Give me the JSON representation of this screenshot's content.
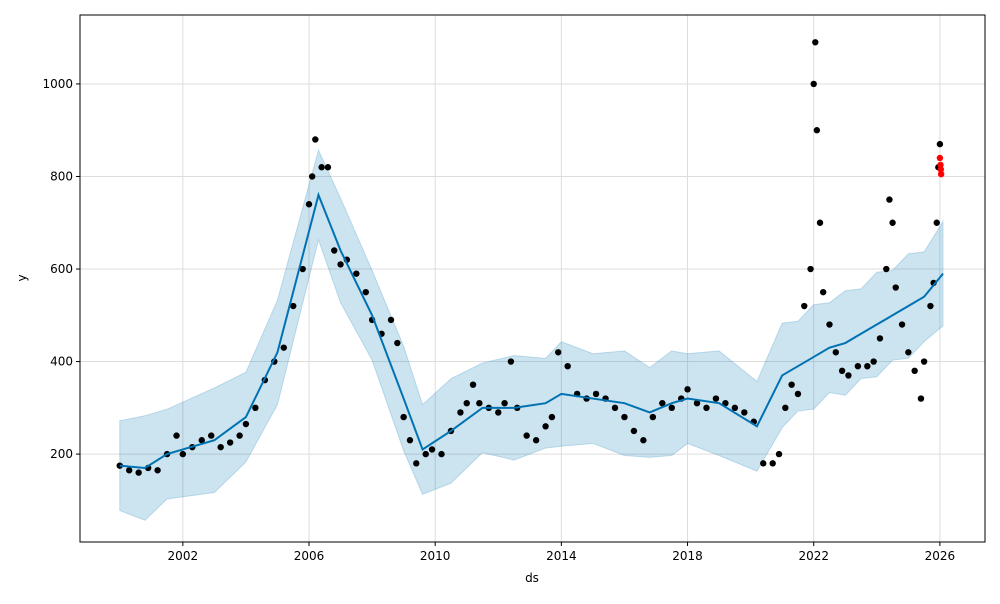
{
  "chart_data": {
    "type": "scatter",
    "title": "",
    "xlabel": "ds",
    "ylabel": "y",
    "xlim": [
      1998.74,
      2027.43
    ],
    "ylim": [
      10,
      1149
    ],
    "xticks": [
      2002,
      2006,
      2010,
      2014,
      2018,
      2022,
      2026
    ],
    "yticks": [
      200,
      400,
      600,
      800,
      1000
    ],
    "grid": true,
    "colors": {
      "observed": "#000000",
      "future_observed": "#ff0000",
      "forecast": "#0072B2",
      "interval": "#0072B2"
    },
    "observed": [
      [
        2000.0,
        175
      ],
      [
        2000.3,
        165
      ],
      [
        2000.6,
        160
      ],
      [
        2000.9,
        170
      ],
      [
        2001.2,
        165
      ],
      [
        2001.5,
        200
      ],
      [
        2001.8,
        240
      ],
      [
        2002.0,
        200
      ],
      [
        2002.3,
        215
      ],
      [
        2002.6,
        230
      ],
      [
        2002.9,
        240
      ],
      [
        2003.2,
        215
      ],
      [
        2003.5,
        225
      ],
      [
        2003.8,
        240
      ],
      [
        2004.0,
        265
      ],
      [
        2004.3,
        300
      ],
      [
        2004.6,
        360
      ],
      [
        2004.9,
        400
      ],
      [
        2005.2,
        430
      ],
      [
        2005.5,
        520
      ],
      [
        2005.8,
        600
      ],
      [
        2006.0,
        740
      ],
      [
        2006.1,
        800
      ],
      [
        2006.2,
        880
      ],
      [
        2006.4,
        820
      ],
      [
        2006.6,
        820
      ],
      [
        2006.8,
        640
      ],
      [
        2007.0,
        610
      ],
      [
        2007.2,
        620
      ],
      [
        2007.5,
        590
      ],
      [
        2007.8,
        550
      ],
      [
        2008.0,
        490
      ],
      [
        2008.3,
        460
      ],
      [
        2008.6,
        490
      ],
      [
        2008.8,
        440
      ],
      [
        2009.0,
        280
      ],
      [
        2009.2,
        230
      ],
      [
        2009.4,
        180
      ],
      [
        2009.7,
        200
      ],
      [
        2009.9,
        210
      ],
      [
        2010.2,
        200
      ],
      [
        2010.5,
        250
      ],
      [
        2010.8,
        290
      ],
      [
        2011.0,
        310
      ],
      [
        2011.2,
        350
      ],
      [
        2011.4,
        310
      ],
      [
        2011.7,
        300
      ],
      [
        2012.0,
        290
      ],
      [
        2012.2,
        310
      ],
      [
        2012.4,
        400
      ],
      [
        2012.6,
        300
      ],
      [
        2012.9,
        240
      ],
      [
        2013.2,
        230
      ],
      [
        2013.5,
        260
      ],
      [
        2013.7,
        280
      ],
      [
        2013.9,
        420
      ],
      [
        2014.2,
        390
      ],
      [
        2014.5,
        330
      ],
      [
        2014.8,
        320
      ],
      [
        2015.1,
        330
      ],
      [
        2015.4,
        320
      ],
      [
        2015.7,
        300
      ],
      [
        2016.0,
        280
      ],
      [
        2016.3,
        250
      ],
      [
        2016.6,
        230
      ],
      [
        2016.9,
        280
      ],
      [
        2017.2,
        310
      ],
      [
        2017.5,
        300
      ],
      [
        2017.8,
        320
      ],
      [
        2018.0,
        340
      ],
      [
        2018.3,
        310
      ],
      [
        2018.6,
        300
      ],
      [
        2018.9,
        320
      ],
      [
        2019.2,
        310
      ],
      [
        2019.5,
        300
      ],
      [
        2019.8,
        290
      ],
      [
        2020.1,
        270
      ],
      [
        2020.4,
        180
      ],
      [
        2020.7,
        180
      ],
      [
        2020.9,
        200
      ],
      [
        2021.1,
        300
      ],
      [
        2021.3,
        350
      ],
      [
        2021.5,
        330
      ],
      [
        2021.7,
        520
      ],
      [
        2021.9,
        600
      ],
      [
        2022.0,
        1000
      ],
      [
        2022.05,
        1090
      ],
      [
        2022.1,
        900
      ],
      [
        2022.2,
        700
      ],
      [
        2022.3,
        550
      ],
      [
        2022.5,
        480
      ],
      [
        2022.7,
        420
      ],
      [
        2022.9,
        380
      ],
      [
        2023.1,
        370
      ],
      [
        2023.4,
        390
      ],
      [
        2023.7,
        390
      ],
      [
        2023.9,
        400
      ],
      [
        2024.1,
        450
      ],
      [
        2024.3,
        600
      ],
      [
        2024.4,
        750
      ],
      [
        2024.5,
        700
      ],
      [
        2024.6,
        560
      ],
      [
        2024.8,
        480
      ],
      [
        2025.0,
        420
      ],
      [
        2025.2,
        380
      ],
      [
        2025.4,
        320
      ],
      [
        2025.5,
        400
      ],
      [
        2025.7,
        520
      ],
      [
        2025.8,
        570
      ],
      [
        2025.9,
        700
      ],
      [
        2025.95,
        820
      ],
      [
        2026.0,
        870
      ]
    ],
    "future_observed": [
      [
        2026.0,
        840
      ],
      [
        2026.02,
        825
      ],
      [
        2026.03,
        815
      ],
      [
        2026.04,
        805
      ]
    ],
    "forecast": [
      [
        2000,
        175
      ],
      [
        2000.8,
        170
      ],
      [
        2001.5,
        200
      ],
      [
        2003,
        230
      ],
      [
        2004,
        280
      ],
      [
        2005,
        420
      ],
      [
        2006.3,
        760
      ],
      [
        2007,
        640
      ],
      [
        2008,
        500
      ],
      [
        2009,
        320
      ],
      [
        2009.6,
        210
      ],
      [
        2010.5,
        250
      ],
      [
        2011.5,
        300
      ],
      [
        2012.5,
        300
      ],
      [
        2013.5,
        310
      ],
      [
        2014,
        330
      ],
      [
        2015,
        320
      ],
      [
        2016,
        310
      ],
      [
        2016.8,
        290
      ],
      [
        2017.5,
        310
      ],
      [
        2018,
        320
      ],
      [
        2019,
        310
      ],
      [
        2020.2,
        260
      ],
      [
        2021,
        370
      ],
      [
        2021.5,
        390
      ],
      [
        2022,
        410
      ],
      [
        2022.5,
        430
      ],
      [
        2023,
        440
      ],
      [
        2023.5,
        460
      ],
      [
        2024,
        480
      ],
      [
        2024.5,
        500
      ],
      [
        2025,
        520
      ],
      [
        2025.5,
        540
      ],
      [
        2026.1,
        590
      ]
    ],
    "interval_halfwidth": 105
  }
}
